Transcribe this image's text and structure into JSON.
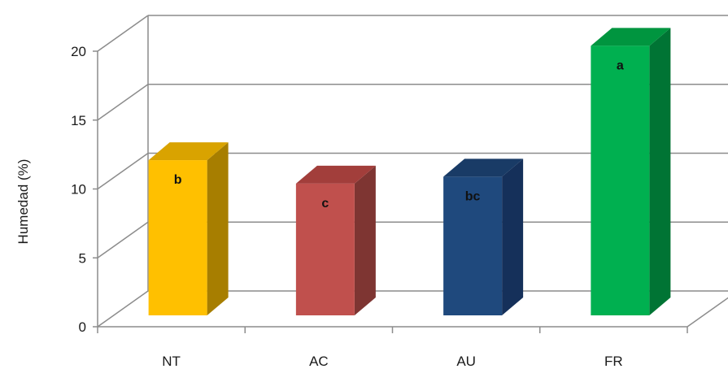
{
  "chart_data": {
    "type": "bar",
    "style": "3d-column",
    "title": "",
    "xlabel": "",
    "ylabel": "Humedad  (%)",
    "categories": [
      "NT",
      "AC",
      "AU",
      "FR"
    ],
    "values": [
      11.5,
      9.8,
      10.3,
      19.8
    ],
    "annotations": [
      "b",
      "c",
      "bc",
      "a"
    ],
    "colors": [
      "#FFC000",
      "#C0504D",
      "#1F497D",
      "#00B050"
    ],
    "side_colors": [
      "#A77E00",
      "#7E3532",
      "#15305A",
      "#007434"
    ],
    "top_colors": [
      "#D9A300",
      "#A23E3B",
      "#193B66",
      "#00953F"
    ],
    "ylim": [
      0,
      20
    ],
    "yticks": [
      "0",
      "5",
      "10",
      "15",
      "20"
    ],
    "grid": true,
    "legend": "none"
  }
}
